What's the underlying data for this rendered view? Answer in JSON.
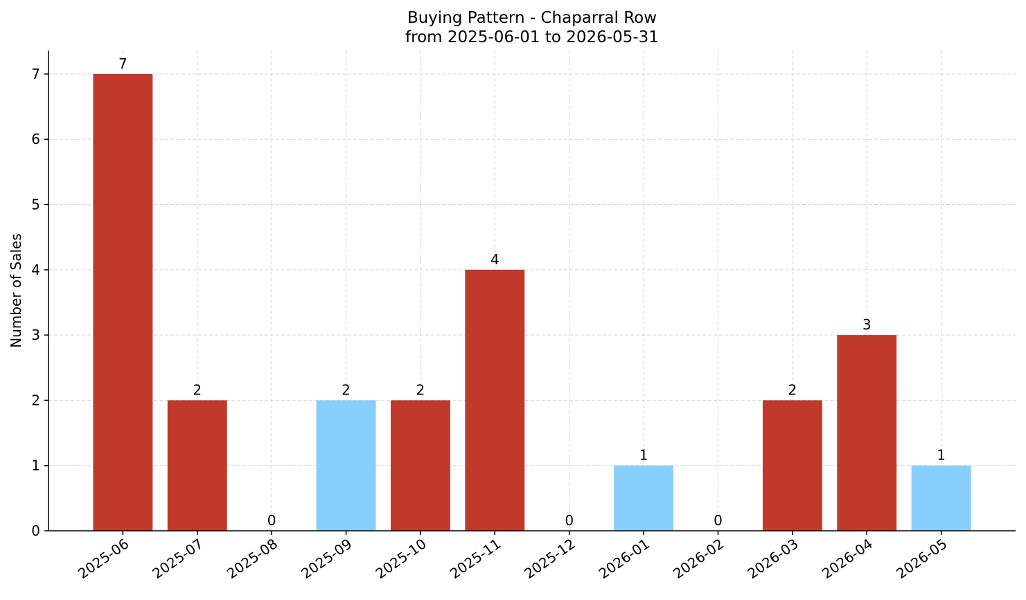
{
  "chart_data": {
    "type": "bar",
    "title": "Buying Pattern - Chaparral Row",
    "subtitle": "from 2025-06-01 to 2026-05-31",
    "y_label": "Number of Sales",
    "categories": [
      "2025-06",
      "2025-07",
      "2025-08",
      "2025-09",
      "2025-10",
      "2025-11",
      "2025-12",
      "2026-01",
      "2026-02",
      "2026-03",
      "2026-04",
      "2026-05"
    ],
    "values": [
      7,
      2,
      0,
      2,
      2,
      4,
      0,
      1,
      0,
      2,
      3,
      1
    ],
    "colors": [
      "#c0392b",
      "#c0392b",
      "#c0392b",
      "#87cefa",
      "#c0392b",
      "#c0392b",
      "#c0392b",
      "#87cefa",
      "#c0392b",
      "#c0392b",
      "#c0392b",
      "#87cefa"
    ],
    "ylim": [
      0,
      7.36
    ],
    "yticks": [
      0,
      1,
      2,
      3,
      4,
      5,
      6,
      7
    ],
    "grid": true
  }
}
